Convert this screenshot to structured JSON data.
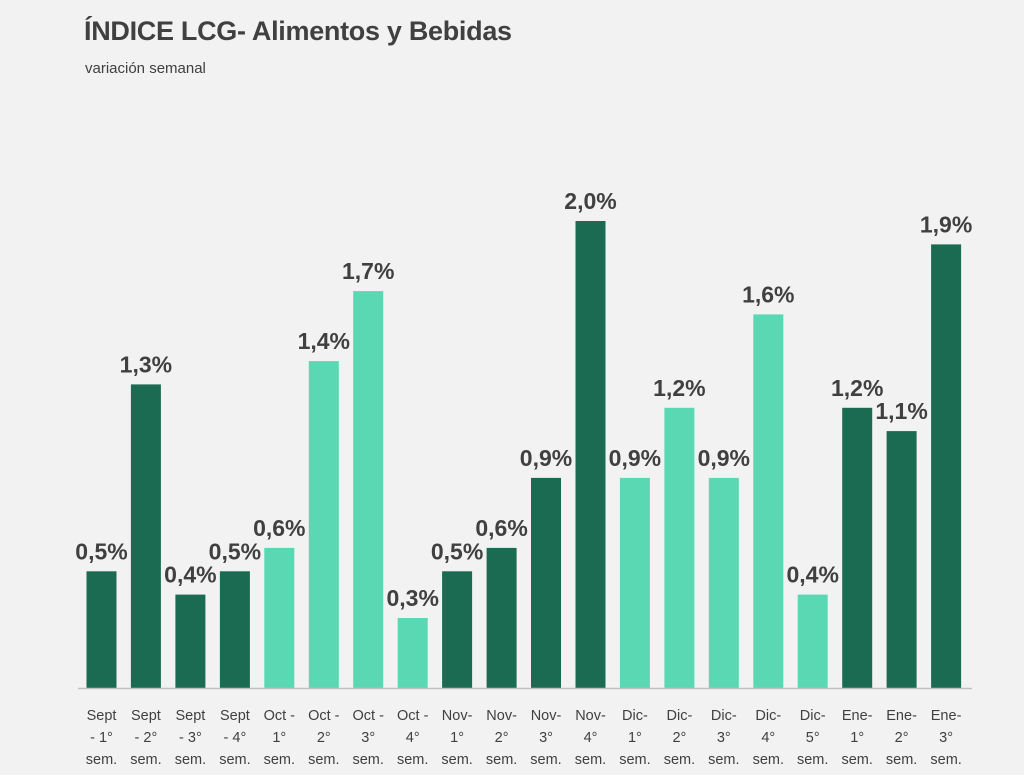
{
  "chart_data": {
    "type": "bar",
    "title": "ÍNDICE LCG- Alimentos y Bebidas",
    "subtitle": "variación semanal",
    "xlabel": "",
    "ylabel": "",
    "ylim": [
      0,
      2.0
    ],
    "grid": false,
    "legend": "none",
    "categories": [
      [
        "Sept",
        "- 1°",
        "sem."
      ],
      [
        "Sept",
        "- 2°",
        "sem."
      ],
      [
        "Sept",
        "- 3°",
        "sem."
      ],
      [
        "Sept",
        "- 4°",
        "sem."
      ],
      [
        "Oct -",
        "1°",
        "sem."
      ],
      [
        "Oct -",
        "2°",
        "sem."
      ],
      [
        "Oct -",
        "3°",
        "sem."
      ],
      [
        "Oct -",
        "4°",
        "sem."
      ],
      [
        "Nov-",
        "1°",
        "sem."
      ],
      [
        "Nov-",
        "2°",
        "sem."
      ],
      [
        "Nov-",
        "3°",
        "sem."
      ],
      [
        "Nov-",
        "4°",
        "sem."
      ],
      [
        "Dic-",
        "1°",
        "sem."
      ],
      [
        "Dic-",
        "2°",
        "sem."
      ],
      [
        "Dic-",
        "3°",
        "sem."
      ],
      [
        "Dic-",
        "4°",
        "sem."
      ],
      [
        "Dic-",
        "5°",
        "sem."
      ],
      [
        "Ene-",
        "1°",
        "sem."
      ],
      [
        "Ene-",
        "2°",
        "sem."
      ],
      [
        "Ene-",
        "3°",
        "sem."
      ]
    ],
    "values": [
      0.5,
      1.3,
      0.4,
      0.5,
      0.6,
      1.4,
      1.7,
      0.3,
      0.5,
      0.6,
      0.9,
      2.0,
      0.9,
      1.2,
      0.9,
      1.6,
      0.4,
      1.2,
      1.1,
      1.9
    ],
    "labels": [
      "0,5%",
      "1,3%",
      "0,4%",
      "0,5%",
      "0,6%",
      "1,4%",
      "1,7%",
      "0,3%",
      "0,5%",
      "0,6%",
      "0,9%",
      "2,0%",
      "0,9%",
      "1,2%",
      "0,9%",
      "1,6%",
      "0,4%",
      "1,2%",
      "1,1%",
      "1,9%"
    ],
    "bar_colors": [
      "#1b6b52",
      "#1b6b52",
      "#1b6b52",
      "#1b6b52",
      "#5ad8b3",
      "#5ad8b3",
      "#5ad8b3",
      "#5ad8b3",
      "#1b6b52",
      "#1b6b52",
      "#1b6b52",
      "#1b6b52",
      "#5ad8b3",
      "#5ad8b3",
      "#5ad8b3",
      "#5ad8b3",
      "#5ad8b3",
      "#1b6b52",
      "#1b6b52",
      "#1b6b52"
    ],
    "axis_color": "#bfbfbf"
  }
}
